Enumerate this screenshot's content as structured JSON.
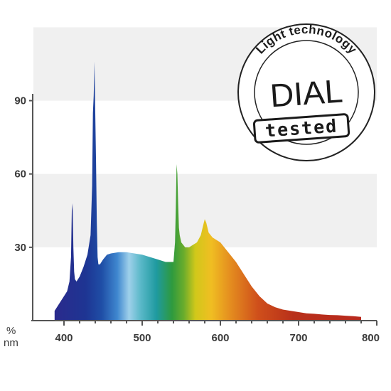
{
  "chart_data": {
    "type": "area",
    "title": "",
    "xlabel": "nm",
    "ylabel": "%",
    "xlim": [
      360,
      800
    ],
    "ylim": [
      0,
      105
    ],
    "x_ticks": [
      400,
      500,
      600,
      700,
      800
    ],
    "y_ticks": [
      30,
      60,
      90
    ],
    "grid": "alternating horizontal bands",
    "spectrum": {
      "x": [
        388,
        392,
        396,
        400,
        404,
        407,
        409,
        410,
        411,
        412,
        413,
        414,
        416,
        420,
        425,
        430,
        434,
        436,
        437,
        438,
        439,
        440,
        441,
        442,
        443,
        444,
        446,
        450,
        455,
        460,
        470,
        480,
        490,
        500,
        510,
        520,
        530,
        540,
        542,
        543,
        544,
        545,
        546,
        547,
        548,
        550,
        555,
        560,
        565,
        570,
        575,
        578,
        580,
        582,
        585,
        590,
        600,
        610,
        620,
        630,
        640,
        650,
        660,
        670,
        680,
        690,
        700,
        710,
        720,
        730,
        740,
        750,
        760,
        770,
        780
      ],
      "y": [
        4,
        6,
        8,
        10,
        12,
        16,
        26,
        45,
        48,
        30,
        20,
        17,
        16,
        18,
        22,
        27,
        35,
        55,
        85,
        92,
        106,
        85,
        65,
        40,
        26,
        23,
        23,
        25,
        27,
        27.5,
        28,
        28,
        27.5,
        27,
        26,
        25,
        24,
        24,
        32,
        46,
        64,
        60,
        48,
        38,
        35,
        32,
        30,
        30,
        31,
        32,
        35,
        39,
        41.5,
        40,
        36,
        34,
        32,
        28,
        24,
        19,
        14,
        10,
        7,
        5.5,
        4.5,
        4,
        3.5,
        3,
        2.8,
        2.5,
        2.3,
        2.2,
        2,
        1.8,
        1.5
      ]
    }
  },
  "seal": {
    "arc_text": "Light technology",
    "brand": "DIAL",
    "stamp": "tested"
  }
}
